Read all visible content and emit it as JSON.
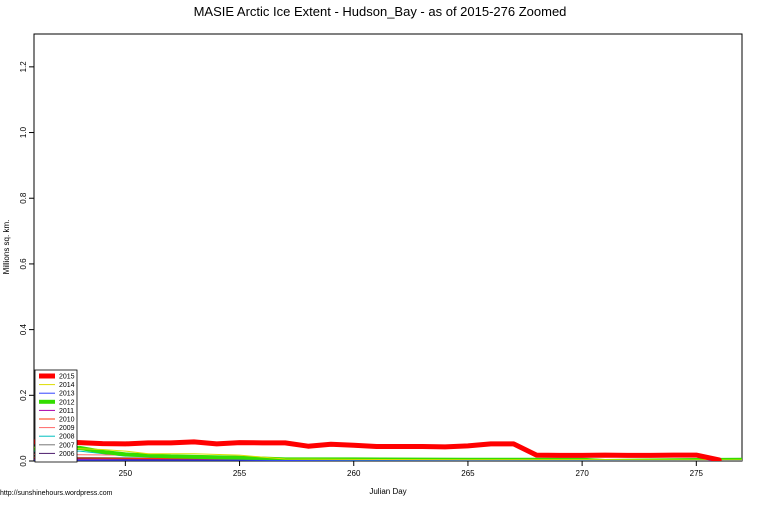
{
  "chart_data": {
    "type": "line",
    "title": "MASIE Arctic Ice Extent - Hudson_Bay - as of 2015-276 Zoomed",
    "xlabel": "Julian Day",
    "ylabel": "Millions sq. km.",
    "credit": "http://sunshinehours.wordpress.com",
    "xlim": [
      246,
      277
    ],
    "ylim": [
      0,
      1.3
    ],
    "xticks": [
      "250",
      "255",
      "260",
      "265",
      "270",
      "275"
    ],
    "yticks": [
      "0.0",
      "0.2",
      "0.4",
      "0.6",
      "0.8",
      "1.0",
      "1.2"
    ],
    "legend_position": "bottom-left",
    "series": [
      {
        "name": "2006",
        "color": "#4b1b6b",
        "width": 1,
        "x": [
          246,
          250,
          255,
          260,
          265,
          270,
          277
        ],
        "y": [
          0.008,
          0.006,
          0.005,
          0.004,
          0.003,
          0.002,
          0.002
        ]
      },
      {
        "name": "2007",
        "color": "#777777",
        "width": 1,
        "x": [
          246,
          250,
          255,
          260,
          265,
          270,
          277
        ],
        "y": [
          0.012,
          0.01,
          0.008,
          0.006,
          0.004,
          0.003,
          0.003
        ]
      },
      {
        "name": "2008",
        "color": "#00bfbf",
        "width": 1,
        "x": [
          246,
          248,
          250,
          255,
          260,
          265,
          270,
          277
        ],
        "y": [
          0.03,
          0.03,
          0.015,
          0.01,
          0.006,
          0.004,
          0.003,
          0.003
        ]
      },
      {
        "name": "2009",
        "color": "#ff6666",
        "width": 1,
        "x": [
          246,
          250,
          255,
          257,
          260,
          265,
          270,
          277
        ],
        "y": [
          0.02,
          0.018,
          0.014,
          0.008,
          0.006,
          0.004,
          0.004,
          0.003
        ]
      },
      {
        "name": "2010",
        "color": "#ff3300",
        "width": 1,
        "x": [
          246,
          250,
          255,
          260,
          265,
          270,
          275,
          276,
          277
        ],
        "y": [
          0.01,
          0.008,
          0.006,
          0.005,
          0.004,
          0.004,
          0.004,
          0.0,
          0.001
        ]
      },
      {
        "name": "2011",
        "color": "#aa00aa",
        "width": 1,
        "x": [
          246,
          250,
          255,
          260,
          265,
          270,
          277
        ],
        "y": [
          0.005,
          0.004,
          0.003,
          0.003,
          0.002,
          0.002,
          0.002
        ]
      },
      {
        "name": "2012",
        "color": "#33dd00",
        "width": 4,
        "x": [
          246,
          248,
          249,
          250,
          252,
          255,
          257,
          260,
          265,
          270,
          271,
          275,
          277
        ],
        "y": [
          0.038,
          0.04,
          0.028,
          0.02,
          0.014,
          0.01,
          0.005,
          0.005,
          0.004,
          0.004,
          0.0,
          0.003,
          0.004
        ]
      },
      {
        "name": "2013",
        "color": "#3344ff",
        "width": 1,
        "x": [
          246,
          250,
          255,
          260,
          265,
          270,
          277
        ],
        "y": [
          0.002,
          0.002,
          0.002,
          0.001,
          0.001,
          0.001,
          0.001
        ]
      },
      {
        "name": "2014",
        "color": "#dddd00",
        "width": 1,
        "x": [
          246,
          249,
          250,
          251,
          253,
          255,
          256,
          257,
          260,
          265,
          270,
          275,
          277
        ],
        "y": [
          0.042,
          0.035,
          0.03,
          0.022,
          0.022,
          0.018,
          0.012,
          0.006,
          0.005,
          0.004,
          0.004,
          0.003,
          0.003
        ]
      },
      {
        "name": "2015",
        "color": "#ff0000",
        "width": 5,
        "x": [
          246,
          247,
          248,
          249,
          250,
          251,
          252,
          253,
          254,
          255,
          256,
          257,
          258,
          259,
          260,
          261,
          262,
          263,
          264,
          265,
          266,
          267,
          268,
          269,
          270,
          271,
          272,
          273,
          274,
          275,
          276
        ],
        "y": [
          0.058,
          0.058,
          0.056,
          0.053,
          0.052,
          0.055,
          0.055,
          0.058,
          0.052,
          0.056,
          0.055,
          0.055,
          0.045,
          0.051,
          0.048,
          0.044,
          0.044,
          0.044,
          0.043,
          0.046,
          0.052,
          0.052,
          0.018,
          0.017,
          0.017,
          0.018,
          0.017,
          0.017,
          0.018,
          0.018,
          0.003
        ]
      }
    ],
    "legend_order": [
      "2015",
      "2014",
      "2013",
      "2012",
      "2011",
      "2010",
      "2009",
      "2008",
      "2007",
      "2006"
    ]
  }
}
